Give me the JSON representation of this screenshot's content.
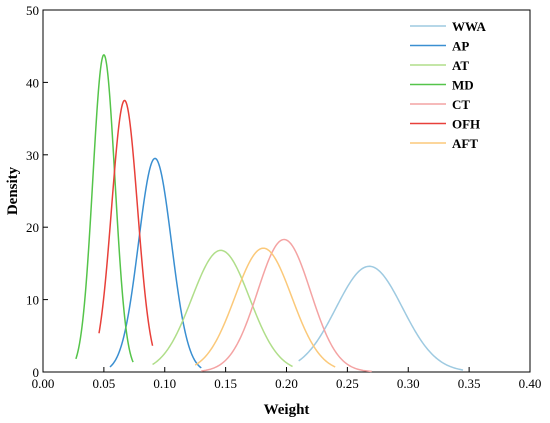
{
  "chart_data": {
    "type": "line",
    "xlabel": "Weight",
    "ylabel": "Density",
    "xlim": [
      0,
      0.4
    ],
    "ylim": [
      0,
      50
    ],
    "xticks": [
      "0.00",
      "0.05",
      "0.10",
      "0.15",
      "0.20",
      "0.25",
      "0.30",
      "0.35",
      "0.40"
    ],
    "yticks": [
      "0",
      "10",
      "20",
      "30",
      "40",
      "50"
    ],
    "legend_position": "top-right",
    "grid": false,
    "series": [
      {
        "name": "WWA",
        "color": "#9ecae1",
        "mean": 0.268,
        "peak": 14.6,
        "x_start": 0.21,
        "x_end": 0.345
      },
      {
        "name": "AP",
        "color": "#3a8fd1",
        "mean": 0.092,
        "peak": 29.5,
        "x_start": 0.055,
        "x_end": 0.13
      },
      {
        "name": "AT",
        "color": "#b0de8a",
        "mean": 0.146,
        "peak": 16.8,
        "x_start": 0.09,
        "x_end": 0.205
      },
      {
        "name": "MD",
        "color": "#55c44a",
        "mean": 0.05,
        "peak": 43.8,
        "x_start": 0.027,
        "x_end": 0.074
      },
      {
        "name": "CT",
        "color": "#f4a3a3",
        "mean": 0.198,
        "peak": 18.3,
        "x_start": 0.13,
        "x_end": 0.27
      },
      {
        "name": "OFH",
        "color": "#e8403a",
        "mean": 0.067,
        "peak": 37.5,
        "x_start": 0.046,
        "x_end": 0.09
      },
      {
        "name": "AFT",
        "color": "#fbc97a",
        "mean": 0.181,
        "peak": 17.1,
        "x_start": 0.125,
        "x_end": 0.24
      }
    ]
  }
}
